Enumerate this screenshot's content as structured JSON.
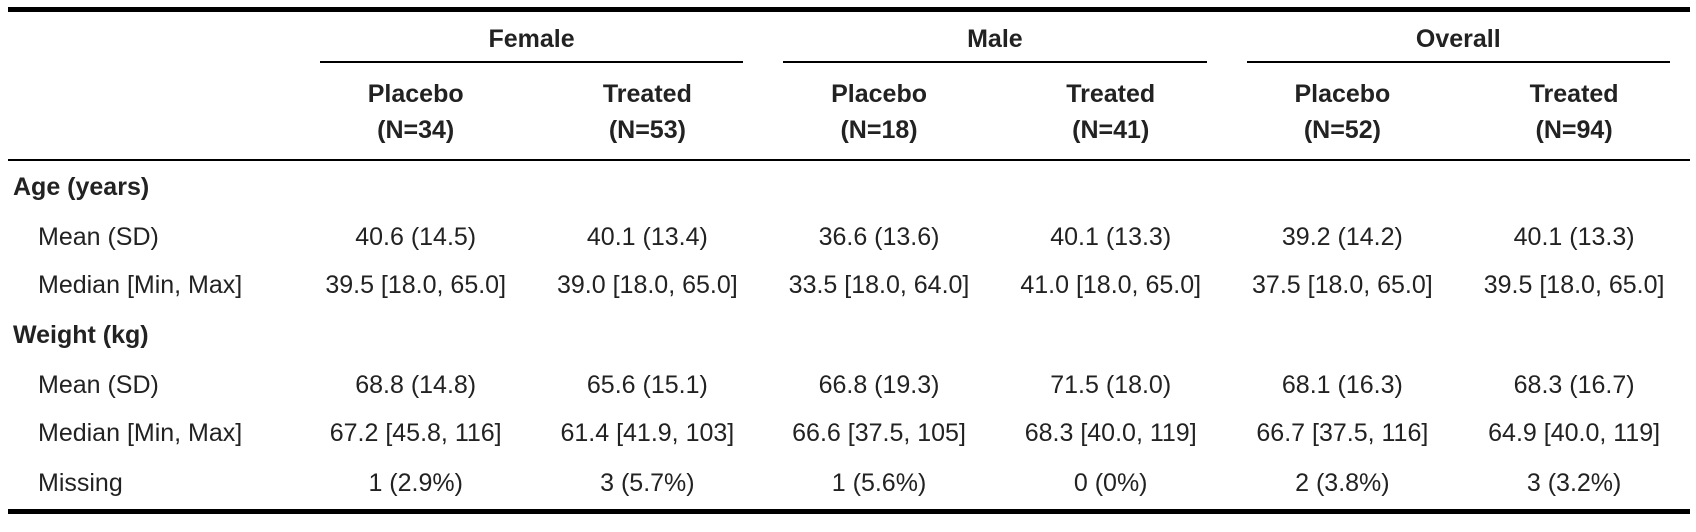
{
  "table": {
    "groups": [
      {
        "label": "Female"
      },
      {
        "label": "Male"
      },
      {
        "label": "Overall"
      }
    ],
    "arms": [
      {
        "name": "Placebo",
        "n": "(N=34)"
      },
      {
        "name": "Treated",
        "n": "(N=53)"
      },
      {
        "name": "Placebo",
        "n": "(N=18)"
      },
      {
        "name": "Treated",
        "n": "(N=41)"
      },
      {
        "name": "Placebo",
        "n": "(N=52)"
      },
      {
        "name": "Treated",
        "n": "(N=94)"
      }
    ],
    "sections": [
      {
        "title": "Age (years)",
        "rows": [
          {
            "label": "Mean (SD)",
            "cells": [
              "40.6 (14.5)",
              "40.1 (13.4)",
              "36.6 (13.6)",
              "40.1 (13.3)",
              "39.2 (14.2)",
              "40.1 (13.3)"
            ]
          },
          {
            "label": "Median [Min, Max]",
            "cells": [
              "39.5 [18.0, 65.0]",
              "39.0 [18.0, 65.0]",
              "33.5 [18.0, 64.0]",
              "41.0 [18.0, 65.0]",
              "37.5 [18.0, 65.0]",
              "39.5 [18.0, 65.0]"
            ]
          }
        ]
      },
      {
        "title": "Weight (kg)",
        "rows": [
          {
            "label": "Mean (SD)",
            "cells": [
              "68.8 (14.8)",
              "65.6 (15.1)",
              "66.8 (19.3)",
              "71.5 (18.0)",
              "68.1 (16.3)",
              "68.3 (16.7)"
            ]
          },
          {
            "label": "Median [Min, Max]",
            "cells": [
              "67.2 [45.8, 116]",
              "61.4 [41.9, 103]",
              "66.6 [37.5, 105]",
              "68.3 [40.0, 119]",
              "66.7 [37.5, 116]",
              "64.9 [40.0, 119]"
            ]
          },
          {
            "label": "Missing",
            "cells": [
              "1 (2.9%)",
              "3 (5.7%)",
              "1 (5.6%)",
              "0 (0%)",
              "2 (3.8%)",
              "3 (3.2%)"
            ]
          }
        ]
      }
    ]
  }
}
